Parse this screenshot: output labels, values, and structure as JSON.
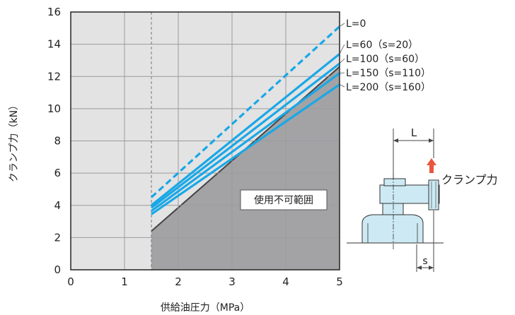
{
  "chart_data": {
    "type": "line",
    "xlabel": "供給油圧力（MPa）",
    "ylabel": "クランプ力（kN）",
    "xlim": [
      0,
      5
    ],
    "ylim": [
      0,
      16
    ],
    "xticks": [
      0,
      1,
      2,
      3,
      4,
      5
    ],
    "yticks": [
      0,
      2,
      4,
      6,
      8,
      10,
      12,
      14,
      16
    ],
    "grid": true,
    "min_pressure": 1.5,
    "series": [
      {
        "name": "L=0",
        "x": [
          1.5,
          5
        ],
        "y": [
          4.5,
          15.1
        ],
        "style": "dashed",
        "color": "#19a8e6"
      },
      {
        "name": "L=60（s=20）",
        "x": [
          1.5,
          5
        ],
        "y": [
          4.0,
          13.4
        ],
        "style": "solid",
        "color": "#19a8e6"
      },
      {
        "name": "L=100（s=60）",
        "x": [
          1.5,
          5
        ],
        "y": [
          3.85,
          12.8
        ],
        "style": "solid",
        "color": "#19a8e6"
      },
      {
        "name": "L=150（s=110）",
        "x": [
          1.5,
          5
        ],
        "y": [
          3.65,
          12.2
        ],
        "style": "solid",
        "color": "#19a8e6"
      },
      {
        "name": "L=200（s=160）",
        "x": [
          1.5,
          5
        ],
        "y": [
          3.45,
          11.5
        ],
        "style": "solid",
        "color": "#19a8e6"
      }
    ],
    "unusable_region": {
      "label": "使用不可範囲",
      "boundary": {
        "x": [
          1.5,
          5
        ],
        "y": [
          2.4,
          12.6
        ]
      },
      "color": "#a3a3a6"
    }
  },
  "diagram": {
    "length_label": "L",
    "stroke_label": "s",
    "force_label": "クランプ力",
    "arrow_color": "#e8563f",
    "part_color": "#cde9f3"
  }
}
